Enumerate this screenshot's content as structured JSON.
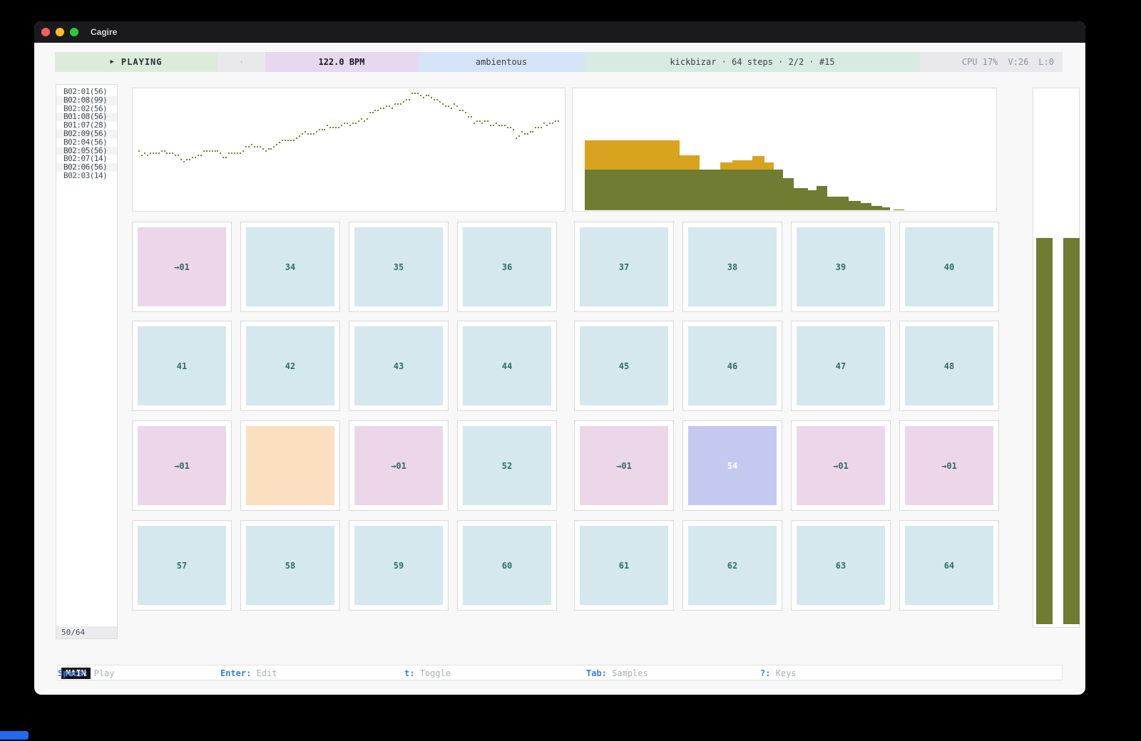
{
  "window": {
    "title": "Cagire"
  },
  "colors": {
    "traffic_red": "#ff5f57",
    "traffic_yellow": "#febc2e",
    "traffic_green": "#28c840",
    "olive": "#6f7c31",
    "mustard": "#d8a31f",
    "dot_olive": "#7b8139",
    "cell_cyan": "#d4e8ed",
    "cell_pink": "#ecd7e9",
    "cell_orange": "#fbdfc1",
    "cell_purple": "#c4caef",
    "accent_blue": "#3b7ddd"
  },
  "toolbar": {
    "play_icon": "▶",
    "transport_label": "PLAYING",
    "dot": "·",
    "bpm": "122.0 BPM",
    "mode": "ambientous",
    "pattern_info": "kickbizar · 64 steps · 2/2 · #15",
    "cpu": "CPU 17%",
    "voices": "V:26",
    "l": "L:0"
  },
  "sample_list": {
    "items": [
      "B02:01(56)",
      "B02:08(99)",
      "B02:02(56)",
      "B01:08(56)",
      "B01:07(28)",
      "B02:09(56)",
      "B02:04(56)",
      "B02:05(56)",
      "B02:07(14)",
      "B02:06(56)",
      "B02:03(14)"
    ],
    "count": "50/64"
  },
  "chart_data": [
    {
      "type": "scatter",
      "name": "pitch-curve",
      "color": "#7b8139",
      "n_dots": 150,
      "points_norm": [
        [
          0.0,
          0.52
        ],
        [
          0.016,
          0.54
        ],
        [
          0.043,
          0.52
        ],
        [
          0.08,
          0.55
        ],
        [
          0.112,
          0.58
        ],
        [
          0.156,
          0.53
        ],
        [
          0.202,
          0.55
        ],
        [
          0.242,
          0.51
        ],
        [
          0.271,
          0.48
        ],
        [
          0.294,
          0.51
        ],
        [
          0.321,
          0.49
        ],
        [
          0.34,
          0.43
        ],
        [
          0.363,
          0.45
        ],
        [
          0.386,
          0.4
        ],
        [
          0.418,
          0.36
        ],
        [
          0.444,
          0.33
        ],
        [
          0.47,
          0.35
        ],
        [
          0.497,
          0.31
        ],
        [
          0.523,
          0.27
        ],
        [
          0.549,
          0.23
        ],
        [
          0.576,
          0.19
        ],
        [
          0.602,
          0.15
        ],
        [
          0.628,
          0.11
        ],
        [
          0.643,
          0.075
        ],
        [
          0.66,
          0.063
        ],
        [
          0.679,
          0.086
        ],
        [
          0.699,
          0.075
        ],
        [
          0.719,
          0.11
        ],
        [
          0.739,
          0.14
        ],
        [
          0.758,
          0.18
        ],
        [
          0.778,
          0.22
        ],
        [
          0.798,
          0.26
        ],
        [
          0.817,
          0.26
        ],
        [
          0.844,
          0.3
        ],
        [
          0.863,
          0.32
        ],
        [
          0.886,
          0.34
        ],
        [
          0.9,
          0.4
        ],
        [
          0.911,
          0.35
        ],
        [
          0.928,
          0.36
        ],
        [
          0.947,
          0.33
        ],
        [
          0.967,
          0.32
        ],
        [
          0.993,
          0.28
        ],
        [
          1.0,
          0.27
        ]
      ]
    },
    {
      "type": "histogram-stacked",
      "name": "sample-histogram",
      "green": "#6f7c31",
      "yellow": "#d8a31f",
      "bottom_frac": 0.994,
      "bars": [
        [
          0.028,
          0.252,
          0.661,
          0.425
        ],
        [
          0.252,
          0.299,
          0.661,
          0.546
        ],
        [
          0.299,
          0.349,
          0.661,
          null
        ],
        [
          0.349,
          0.377,
          0.661,
          0.603
        ],
        [
          0.377,
          0.425,
          0.661,
          0.586
        ],
        [
          0.425,
          0.453,
          0.661,
          0.552
        ],
        [
          0.453,
          0.475,
          0.661,
          0.603
        ],
        [
          0.475,
          0.497,
          0.661,
          null
        ],
        [
          0.497,
          0.522,
          0.73,
          null
        ],
        [
          0.522,
          0.555,
          0.816,
          null
        ],
        [
          0.555,
          0.576,
          0.833,
          null
        ],
        [
          0.576,
          0.601,
          0.799,
          null
        ],
        [
          0.601,
          0.651,
          0.885,
          null
        ],
        [
          0.651,
          0.68,
          0.92,
          null
        ],
        [
          0.68,
          0.705,
          0.937,
          null
        ],
        [
          0.705,
          0.73,
          0.96,
          null
        ],
        [
          0.73,
          0.748,
          0.971,
          null
        ],
        [
          0.757,
          0.782,
          0.988,
          null
        ]
      ]
    }
  ],
  "grid": {
    "rows": [
      [
        {
          "label": "→01",
          "variant": "pink"
        },
        {
          "label": "34",
          "variant": "cyan"
        },
        {
          "label": "35",
          "variant": "cyan"
        },
        {
          "label": "36",
          "variant": "cyan"
        },
        {
          "label": "37",
          "variant": "cyan"
        },
        {
          "label": "38",
          "variant": "cyan"
        },
        {
          "label": "39",
          "variant": "cyan"
        },
        {
          "label": "40",
          "variant": "cyan"
        }
      ],
      [
        {
          "label": "41",
          "variant": "cyan"
        },
        {
          "label": "42",
          "variant": "cyan"
        },
        {
          "label": "43",
          "variant": "cyan"
        },
        {
          "label": "44",
          "variant": "cyan"
        },
        {
          "label": "45",
          "variant": "cyan"
        },
        {
          "label": "46",
          "variant": "cyan"
        },
        {
          "label": "47",
          "variant": "cyan"
        },
        {
          "label": "48",
          "variant": "cyan"
        }
      ],
      [
        {
          "label": "→01",
          "variant": "pink"
        },
        {
          "label": "",
          "variant": "orange"
        },
        {
          "label": "→01",
          "variant": "pink"
        },
        {
          "label": "52",
          "variant": "cyan"
        },
        {
          "label": "→01",
          "variant": "pink"
        },
        {
          "label": "54",
          "variant": "purple"
        },
        {
          "label": "→01",
          "variant": "pink"
        },
        {
          "label": "→01",
          "variant": "pink"
        }
      ],
      [
        {
          "label": "57",
          "variant": "cyan"
        },
        {
          "label": "58",
          "variant": "cyan"
        },
        {
          "label": "59",
          "variant": "cyan"
        },
        {
          "label": "60",
          "variant": "cyan"
        },
        {
          "label": "61",
          "variant": "cyan"
        },
        {
          "label": "62",
          "variant": "cyan"
        },
        {
          "label": "63",
          "variant": "cyan"
        },
        {
          "label": "64",
          "variant": "cyan"
        }
      ]
    ]
  },
  "statusbar": {
    "mode": "MAIN",
    "hints": [
      {
        "key": "Space:",
        "desc": "Play"
      },
      {
        "key": "Enter:",
        "desc": "Edit"
      },
      {
        "key": "t:",
        "desc": "Toggle"
      },
      {
        "key": "Tab:",
        "desc": "Samples"
      },
      {
        "key": "?:",
        "desc": "Keys"
      }
    ]
  }
}
